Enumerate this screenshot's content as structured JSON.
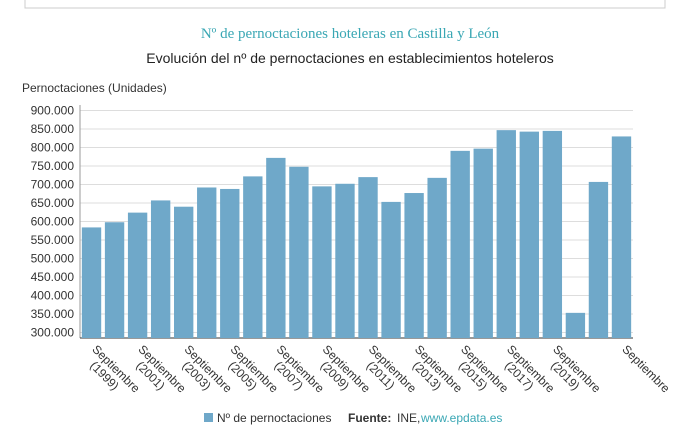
{
  "chart_data": {
    "type": "bar",
    "title": "Nº de pernoctaciones hoteleras en Castilla y León",
    "subtitle": "Evolución del nº de pernoctaciones en establecimientos hoteleros",
    "y_label": "Pernoctaciones (Unidades)",
    "categories": [
      "Septiembre (1999)",
      null,
      "Septiembre (2001)",
      null,
      "Septiembre (2003)",
      null,
      "Septiembre (2005)",
      null,
      "Septiembre (2007)",
      null,
      "Septiembre (2009)",
      null,
      "Septiembre (2011)",
      null,
      "Septiembre (2013)",
      null,
      "Septiembre (2015)",
      null,
      "Septiembre (2017)",
      null,
      "Septiembre (2019)",
      null,
      null,
      "Septiembre"
    ],
    "series": [
      {
        "name": "Nº de pernoctaciones",
        "color": "#6fa8c9",
        "values": [
          584000,
          598000,
          624000,
          657000,
          640000,
          692000,
          688000,
          722000,
          772000,
          748000,
          695000,
          702000,
          720000,
          653000,
          677000,
          718000,
          791000,
          797000,
          847000,
          843000,
          845000,
          353000,
          707000,
          830000
        ]
      }
    ],
    "ylim": [
      285000,
      915000
    ],
    "yticks": [
      {
        "value": 300000,
        "label": "300.000"
      },
      {
        "value": 350000,
        "label": "350.000"
      },
      {
        "value": 400000,
        "label": "400.000"
      },
      {
        "value": 450000,
        "label": "450.000"
      },
      {
        "value": 500000,
        "label": "500.000"
      },
      {
        "value": 550000,
        "label": "550.000"
      },
      {
        "value": 600000,
        "label": "600.000"
      },
      {
        "value": 650000,
        "label": "650.000"
      },
      {
        "value": 700000,
        "label": "700.000"
      },
      {
        "value": 750000,
        "label": "750.000"
      },
      {
        "value": 800000,
        "label": "800.000"
      },
      {
        "value": 850000,
        "label": "850.000"
      },
      {
        "value": 900000,
        "label": "900.000"
      }
    ],
    "grid": true,
    "source_label": "Fuente:",
    "source": "INE,",
    "source_link": "www.epdata.es"
  }
}
